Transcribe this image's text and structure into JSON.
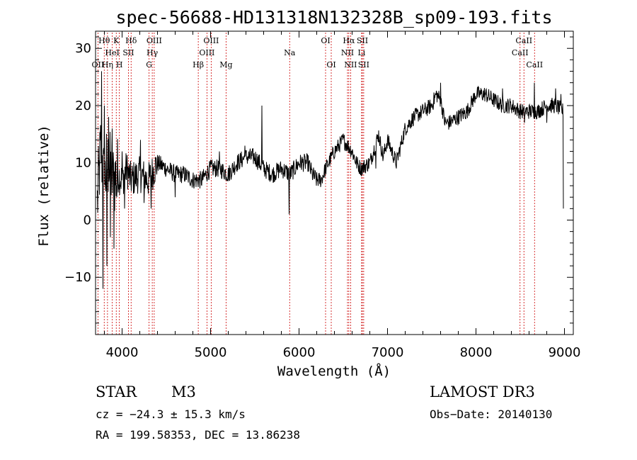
{
  "chart_data": {
    "type": "line",
    "title": "spec-56688-HD131318N132328B_sp09-193.fits",
    "xlabel": "Wavelength (Å)",
    "ylabel": "Flux (relative)",
    "xlim": [
      3700,
      9100
    ],
    "ylim": [
      -20,
      33
    ],
    "xticks": [
      4000,
      5000,
      6000,
      7000,
      8000,
      9000
    ],
    "yticks": [
      -10,
      0,
      10,
      20,
      30
    ],
    "grid": false,
    "line_color": "#000000",
    "marker_color": "#cc0000",
    "spectrum_anchors": [
      [
        3720,
        3
      ],
      [
        3760,
        13
      ],
      [
        3800,
        6
      ],
      [
        3830,
        10
      ],
      [
        3860,
        9
      ],
      [
        3900,
        7
      ],
      [
        3950,
        8
      ],
      [
        4000,
        7
      ],
      [
        4050,
        9
      ],
      [
        4100,
        7
      ],
      [
        4200,
        8
      ],
      [
        4300,
        7
      ],
      [
        4400,
        10
      ],
      [
        4500,
        9
      ],
      [
        4600,
        8
      ],
      [
        4700,
        8
      ],
      [
        4800,
        7
      ],
      [
        4900,
        7
      ],
      [
        5000,
        9
      ],
      [
        5100,
        9
      ],
      [
        5200,
        8
      ],
      [
        5300,
        10
      ],
      [
        5400,
        11
      ],
      [
        5500,
        11
      ],
      [
        5600,
        9
      ],
      [
        5700,
        8
      ],
      [
        5800,
        9
      ],
      [
        5900,
        8
      ],
      [
        6000,
        10
      ],
      [
        6100,
        10
      ],
      [
        6150,
        8
      ],
      [
        6200,
        7
      ],
      [
        6250,
        7
      ],
      [
        6300,
        9
      ],
      [
        6400,
        12
      ],
      [
        6500,
        14
      ],
      [
        6550,
        13
      ],
      [
        6600,
        12
      ],
      [
        6650,
        10
      ],
      [
        6700,
        9
      ],
      [
        6800,
        10
      ],
      [
        6900,
        15
      ],
      [
        6950,
        11
      ],
      [
        7000,
        14
      ],
      [
        7100,
        10
      ],
      [
        7200,
        16
      ],
      [
        7300,
        18
      ],
      [
        7400,
        19
      ],
      [
        7500,
        20
      ],
      [
        7550,
        22
      ],
      [
        7600,
        21
      ],
      [
        7650,
        17
      ],
      [
        7700,
        17
      ],
      [
        7800,
        18
      ],
      [
        7900,
        19
      ],
      [
        8000,
        22
      ],
      [
        8100,
        22
      ],
      [
        8200,
        21
      ],
      [
        8300,
        20
      ],
      [
        8400,
        20
      ],
      [
        8500,
        19
      ],
      [
        8600,
        19
      ],
      [
        8700,
        19
      ],
      [
        8800,
        20
      ],
      [
        8900,
        20
      ],
      [
        8990,
        19
      ]
    ],
    "spectrum_features": [
      [
        3770,
        26
      ],
      [
        3785,
        -12
      ],
      [
        3800,
        20
      ],
      [
        3830,
        -8
      ],
      [
        3850,
        18
      ],
      [
        3870,
        -3
      ],
      [
        3890,
        16
      ],
      [
        3910,
        -5
      ],
      [
        3940,
        4
      ],
      [
        4000,
        12
      ],
      [
        4030,
        2
      ],
      [
        4210,
        14
      ],
      [
        4250,
        3
      ],
      [
        4330,
        2
      ],
      [
        4600,
        4
      ],
      [
        5100,
        12
      ],
      [
        5390,
        13
      ],
      [
        5580,
        20
      ],
      [
        5890,
        1
      ],
      [
        6870,
        9
      ],
      [
        7600,
        24
      ],
      [
        8300,
        23
      ],
      [
        8550,
        17
      ],
      [
        8660,
        24
      ],
      [
        8800,
        17
      ],
      [
        8900,
        23
      ],
      [
        8960,
        22
      ],
      [
        8995,
        2
      ]
    ],
    "spectral_lines": [
      {
        "name": "OII",
        "wl": 3727,
        "row": 3
      },
      {
        "name": "Hθ",
        "wl": 3798,
        "row": 1
      },
      {
        "name": "Hη",
        "wl": 3835,
        "row": 3
      },
      {
        "name": "HeI",
        "wl": 3889,
        "row": 2
      },
      {
        "name": "K",
        "wl": 3934,
        "row": 1
      },
      {
        "name": "H",
        "wl": 3969,
        "row": 3
      },
      {
        "name": "SII",
        "wl": 4072,
        "row": 2
      },
      {
        "name": "Hδ",
        "wl": 4102,
        "row": 1
      },
      {
        "name": "G",
        "wl": 4305,
        "row": 3
      },
      {
        "name": "Hγ",
        "wl": 4341,
        "row": 2
      },
      {
        "name": "OIII",
        "wl": 4363,
        "row": 1
      },
      {
        "name": "Hβ",
        "wl": 4861,
        "row": 3
      },
      {
        "name": "OIII",
        "wl": 4959,
        "row": 2
      },
      {
        "name": "OIII",
        "wl": 5007,
        "row": 1
      },
      {
        "name": "Mg",
        "wl": 5175,
        "row": 3
      },
      {
        "name": "Na",
        "wl": 5894,
        "row": 2
      },
      {
        "name": "OI",
        "wl": 6300,
        "row": 1
      },
      {
        "name": "OI",
        "wl": 6364,
        "row": 3
      },
      {
        "name": "NII",
        "wl": 6548,
        "row": 2
      },
      {
        "name": "Hα",
        "wl": 6563,
        "row": 1
      },
      {
        "name": "NII",
        "wl": 6583,
        "row": 3
      },
      {
        "name": "Li",
        "wl": 6707,
        "row": 2
      },
      {
        "name": "SII",
        "wl": 6716,
        "row": 1
      },
      {
        "name": "SII",
        "wl": 6731,
        "row": 3
      },
      {
        "name": "CaII",
        "wl": 8498,
        "row": 2
      },
      {
        "name": "CaII",
        "wl": 8542,
        "row": 1
      },
      {
        "name": "CaII",
        "wl": 8662,
        "row": 3
      }
    ]
  },
  "info": {
    "object_class": "STAR",
    "subclass": "M3",
    "survey": "LAMOST DR3",
    "redshift": "cz = −24.3 ± 15.3 km/s",
    "obs_date": "Obs−Date: 20140130",
    "coords": "RA = 199.58353, DEC =  13.86238"
  }
}
